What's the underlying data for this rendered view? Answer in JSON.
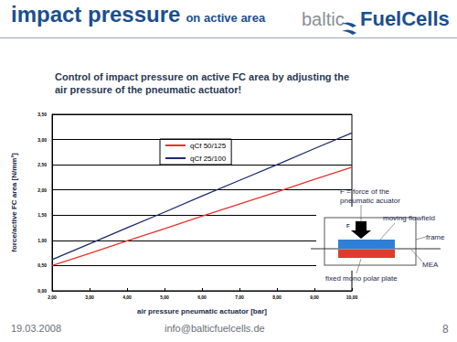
{
  "header": {
    "title": "impact pressure",
    "title_suffix": "on active area",
    "logo": [
      "baltic",
      "FuelCells"
    ]
  },
  "subtitle": [
    "Control of impact pressure on active FC area by adjusting the",
    "air pressure of the pneumatic actuator!"
  ],
  "chart_data": {
    "type": "line",
    "marker": "none",
    "grid": true,
    "legend": "upper left",
    "x_label": "air pressure pneumatic actuator [bar]",
    "y_label": "force/active FC area [N/mm²]",
    "x": [
      2,
      3,
      4,
      5,
      6,
      7,
      8,
      9,
      10
    ],
    "series": [
      {
        "name": "qCf 50/125",
        "color": "#e8322c",
        "values": [
          0.5,
          0.74,
          0.99,
          1.23,
          1.48,
          1.72,
          1.96,
          2.21,
          2.45
        ]
      },
      {
        "name": "qCf 25/100",
        "color": "#1c2a6e",
        "values": [
          0.62,
          0.93,
          1.25,
          1.56,
          1.88,
          2.19,
          2.5,
          2.82,
          3.13
        ]
      }
    ],
    "xlim": [
      2,
      10
    ],
    "xticks": [
      {
        "value": 2,
        "label": "2,00"
      },
      {
        "value": 3,
        "label": "3,00"
      },
      {
        "value": 4,
        "label": "4,00"
      },
      {
        "value": 5,
        "label": "5,00"
      },
      {
        "value": 6,
        "label": "6,00"
      },
      {
        "value": 7,
        "label": "7,00"
      },
      {
        "value": 8,
        "label": "8,00"
      },
      {
        "value": 9,
        "label": "9,00"
      },
      {
        "value": 10,
        "label": "10,00"
      }
    ],
    "ylim": [
      0,
      3.5
    ],
    "yticks": [
      {
        "value": 0,
        "label": "0,00"
      },
      {
        "value": 0.5,
        "label": "0,50"
      },
      {
        "value": 1,
        "label": "1,00"
      },
      {
        "value": 1.5,
        "label": "1,50"
      },
      {
        "value": 2,
        "label": "2,00"
      },
      {
        "value": 2.5,
        "label": "2,50"
      },
      {
        "value": 3,
        "label": "3,00"
      },
      {
        "value": 3.5,
        "label": "3,50"
      }
    ]
  },
  "diagram": {
    "force_note": [
      "F = force of the",
      "pneumatic acuator"
    ],
    "arrow_label": "F",
    "moving": "moving flowfield",
    "frame": "frame",
    "mea": "MEA",
    "fixed": "fixed mono polar plate"
  },
  "footer": {
    "date": "19.03.2008",
    "email": "info@balticfuelcells.de",
    "page": "8"
  }
}
